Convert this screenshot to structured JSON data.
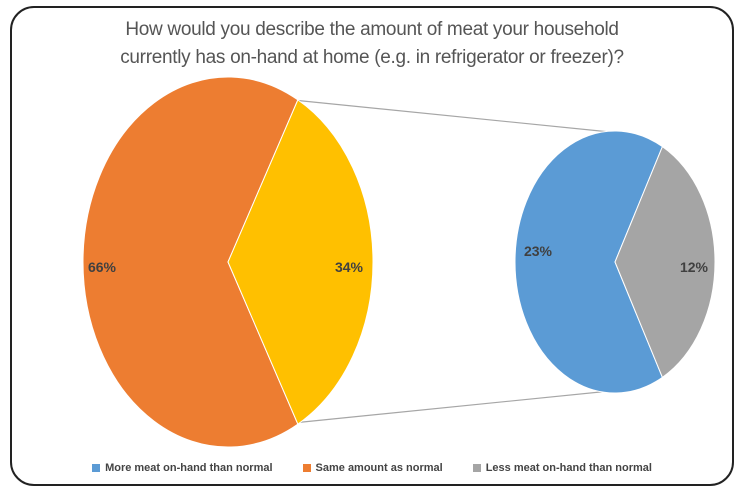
{
  "chart_data": {
    "type": "pie",
    "variant": "pie-of-pie",
    "title_lines": [
      "How would you describe the amount of meat your household",
      "currently has on-hand at home (e.g. in refrigerator or freezer)?"
    ],
    "main_pie": {
      "slices": [
        {
          "name": "Same amount as normal",
          "value": 66,
          "label": "66%",
          "color": "#ED7D31"
        },
        {
          "name": "",
          "value": 34,
          "label": "34%",
          "color": "#FFC000"
        }
      ]
    },
    "secondary_pie": {
      "slices": [
        {
          "name": "More meat on-hand than normal",
          "value": 23,
          "label": "23%",
          "color": "#5B9BD5"
        },
        {
          "name": "Less meat on-hand than normal",
          "value": 12,
          "label": "12%",
          "color": "#A5A5A5"
        }
      ]
    },
    "legend": [
      {
        "label": "More meat on-hand than normal",
        "color": "#5B9BD5"
      },
      {
        "label": "Same amount as normal",
        "color": "#ED7D31"
      },
      {
        "label": "Less meat on-hand than normal",
        "color": "#A5A5A5"
      }
    ],
    "legend_position": "bottom"
  }
}
